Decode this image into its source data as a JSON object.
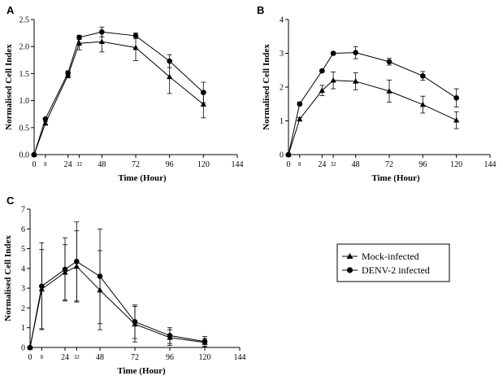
{
  "legend": {
    "items": [
      {
        "label": "Mock-infected",
        "marker": "triangle"
      },
      {
        "label": "DENV-2 infected",
        "marker": "circle"
      }
    ]
  },
  "chart_data": [
    {
      "panel": "A",
      "type": "line",
      "xlabel": "Time (Hour)",
      "ylabel": "Normalised Cell Index",
      "xlim": [
        0,
        144
      ],
      "ylim": [
        0,
        2.5
      ],
      "xticks": [
        0,
        8,
        24,
        32,
        48,
        72,
        96,
        120,
        144
      ],
      "xtick_labels": [
        "0",
        "8",
        "24",
        "32",
        "48",
        "72",
        "96",
        "120",
        "144"
      ],
      "small_xticks": [
        8,
        32
      ],
      "yticks": [
        0,
        0.5,
        1.0,
        1.5,
        2.0,
        2.5
      ],
      "ytick_labels": [
        "0.0",
        "0.5",
        "1.0",
        "1.5",
        "2.0",
        "2.5"
      ],
      "series": [
        {
          "name": "Mock-infected",
          "marker": "triangle",
          "x": [
            0,
            8,
            24,
            32,
            48,
            72,
            96,
            120
          ],
          "y": [
            0,
            0.58,
            1.47,
            2.06,
            2.09,
            1.98,
            1.44,
            0.93
          ],
          "err": [
            0,
            0.03,
            0.05,
            0.12,
            0.19,
            0.24,
            0.31,
            0.25
          ]
        },
        {
          "name": "DENV-2 infected",
          "marker": "circle",
          "x": [
            0,
            8,
            24,
            32,
            48,
            72,
            96,
            120
          ],
          "y": [
            0,
            0.66,
            1.51,
            2.17,
            2.27,
            2.2,
            1.73,
            1.15
          ],
          "err": [
            0,
            0.02,
            0.04,
            0.04,
            0.09,
            0.05,
            0.12,
            0.19
          ]
        }
      ]
    },
    {
      "panel": "B",
      "type": "line",
      "xlabel": "Time (Hour)",
      "ylabel": "Normalised Cell Index",
      "xlim": [
        0,
        144
      ],
      "ylim": [
        0,
        4
      ],
      "xticks": [
        0,
        8,
        24,
        32,
        48,
        72,
        96,
        120,
        144
      ],
      "xtick_labels": [
        "0",
        "8",
        "24",
        "32",
        "48",
        "72",
        "96",
        "120",
        "144"
      ],
      "small_xticks": [
        8,
        32
      ],
      "yticks": [
        0,
        1,
        2,
        3,
        4
      ],
      "ytick_labels": [
        "0",
        "1",
        "2",
        "3",
        "4"
      ],
      "series": [
        {
          "name": "Mock-infected",
          "marker": "triangle",
          "x": [
            0,
            8,
            24,
            32,
            48,
            72,
            96,
            120
          ],
          "y": [
            0,
            1.05,
            1.9,
            2.2,
            2.17,
            1.88,
            1.48,
            1.02
          ],
          "err": [
            0,
            0.05,
            0.15,
            0.25,
            0.25,
            0.33,
            0.25,
            0.25
          ]
        },
        {
          "name": "DENV-2 infected",
          "marker": "circle",
          "x": [
            0,
            8,
            24,
            32,
            48,
            72,
            96,
            120
          ],
          "y": [
            0,
            1.5,
            2.48,
            3.0,
            3.02,
            2.75,
            2.33,
            1.68
          ],
          "err": [
            0,
            0.05,
            0.04,
            0.04,
            0.18,
            0.1,
            0.13,
            0.27
          ]
        }
      ]
    },
    {
      "panel": "C",
      "type": "line",
      "xlabel": "Time (Hour)",
      "ylabel": "Normalised Cell Index",
      "xlim": [
        0,
        144
      ],
      "ylim": [
        0,
        7
      ],
      "xticks": [
        0,
        8,
        24,
        32,
        48,
        72,
        96,
        120,
        144
      ],
      "xtick_labels": [
        "0",
        "8",
        "24",
        "32",
        "48",
        "72",
        "96",
        "120",
        "144"
      ],
      "small_xticks": [
        8,
        32
      ],
      "yticks": [
        0,
        1,
        2,
        3,
        4,
        5,
        6,
        7
      ],
      "ytick_labels": [
        "0",
        "1",
        "2",
        "3",
        "4",
        "5",
        "6",
        "7"
      ],
      "series": [
        {
          "name": "Mock-infected",
          "marker": "triangle",
          "x": [
            0,
            8,
            24,
            32,
            48,
            72,
            96,
            120
          ],
          "y": [
            0,
            2.95,
            3.8,
            4.1,
            2.9,
            1.18,
            0.5,
            0.25
          ],
          "err": [
            0,
            2.0,
            1.4,
            1.8,
            2.0,
            0.9,
            0.4,
            0.2
          ]
        },
        {
          "name": "DENV-2 infected",
          "marker": "circle",
          "x": [
            0,
            8,
            24,
            32,
            48,
            72,
            96,
            120
          ],
          "y": [
            0,
            3.1,
            3.95,
            4.35,
            3.6,
            1.3,
            0.6,
            0.3
          ],
          "err": [
            0,
            2.2,
            1.6,
            2.0,
            2.4,
            0.85,
            0.4,
            0.25
          ]
        }
      ]
    }
  ]
}
